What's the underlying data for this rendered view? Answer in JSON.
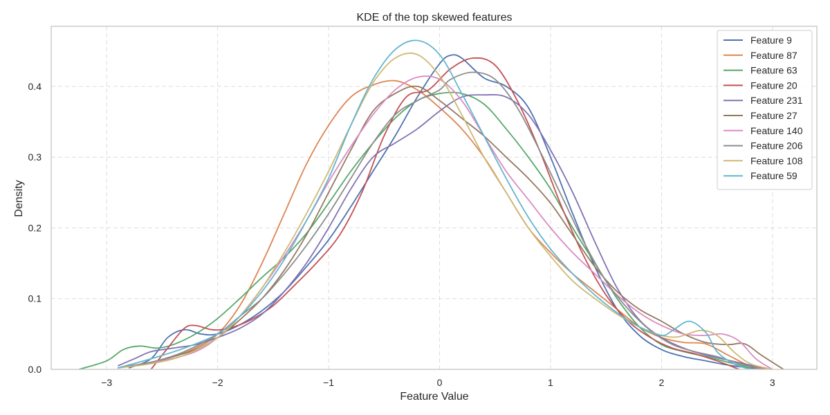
{
  "chart_data": {
    "type": "line",
    "title": "KDE of the top skewed features",
    "xlabel": "Feature Value",
    "ylabel": "Density",
    "xlim": [
      -3.5,
      3.4
    ],
    "ylim": [
      0,
      0.485
    ],
    "xticks": [
      -3,
      -2,
      -1,
      0,
      1,
      2,
      3
    ],
    "xtick_labels": [
      "−3",
      "−2",
      "−1",
      "0",
      "1",
      "2",
      "3"
    ],
    "yticks": [
      0.0,
      0.1,
      0.2,
      0.3,
      0.4
    ],
    "ytick_labels": [
      "0.0",
      "0.1",
      "0.2",
      "0.3",
      "0.4"
    ],
    "grid": true,
    "legend_position": "top-right",
    "series": [
      {
        "name": "Feature 9",
        "color": "#4c72b0",
        "x": [
          -2.8,
          -2.6,
          -2.45,
          -2.3,
          -2.15,
          -2.0,
          -1.8,
          -1.6,
          -1.4,
          -1.2,
          -1.0,
          -0.8,
          -0.6,
          -0.4,
          -0.2,
          0.0,
          0.1,
          0.2,
          0.4,
          0.6,
          0.8,
          1.0,
          1.2,
          1.4,
          1.6,
          1.8,
          2.0,
          2.2,
          2.4,
          2.6,
          2.8,
          3.0
        ],
        "y": [
          0.002,
          0.015,
          0.045,
          0.056,
          0.05,
          0.05,
          0.063,
          0.083,
          0.11,
          0.145,
          0.183,
          0.23,
          0.28,
          0.33,
          0.385,
          0.432,
          0.444,
          0.44,
          0.412,
          0.4,
          0.37,
          0.3,
          0.22,
          0.145,
          0.085,
          0.048,
          0.028,
          0.018,
          0.012,
          0.006,
          0.002,
          0.0
        ]
      },
      {
        "name": "Feature 87",
        "color": "#dd8452",
        "x": [
          -2.9,
          -2.6,
          -2.4,
          -2.2,
          -2.0,
          -1.8,
          -1.6,
          -1.4,
          -1.2,
          -1.0,
          -0.8,
          -0.6,
          -0.4,
          -0.2,
          0.0,
          0.2,
          0.4,
          0.6,
          0.8,
          1.0,
          1.2,
          1.4,
          1.6,
          1.8,
          2.0,
          2.2,
          2.4,
          2.6,
          2.8,
          3.0
        ],
        "y": [
          0.002,
          0.01,
          0.018,
          0.03,
          0.05,
          0.09,
          0.15,
          0.22,
          0.29,
          0.345,
          0.385,
          0.402,
          0.408,
          0.395,
          0.37,
          0.34,
          0.3,
          0.25,
          0.2,
          0.165,
          0.135,
          0.11,
          0.085,
          0.06,
          0.045,
          0.038,
          0.036,
          0.02,
          0.005,
          0.0
        ]
      },
      {
        "name": "Feature 63",
        "color": "#55a868",
        "x": [
          -3.25,
          -3.0,
          -2.85,
          -2.7,
          -2.55,
          -2.4,
          -2.2,
          -2.0,
          -1.8,
          -1.6,
          -1.4,
          -1.2,
          -1.0,
          -0.8,
          -0.6,
          -0.4,
          -0.2,
          0.0,
          0.2,
          0.4,
          0.6,
          0.8,
          1.0,
          1.2,
          1.4,
          1.6,
          1.8,
          2.0,
          2.2,
          2.4,
          2.6,
          2.8
        ],
        "y": [
          0.0,
          0.012,
          0.028,
          0.033,
          0.03,
          0.035,
          0.05,
          0.072,
          0.1,
          0.13,
          0.158,
          0.192,
          0.235,
          0.28,
          0.32,
          0.355,
          0.38,
          0.39,
          0.39,
          0.375,
          0.34,
          0.3,
          0.255,
          0.2,
          0.15,
          0.1,
          0.06,
          0.035,
          0.025,
          0.018,
          0.01,
          0.002
        ]
      },
      {
        "name": "Feature 20",
        "color": "#c44e52",
        "x": [
          -2.6,
          -2.45,
          -2.3,
          -2.2,
          -2.05,
          -1.9,
          -1.7,
          -1.5,
          -1.3,
          -1.1,
          -0.9,
          -0.7,
          -0.5,
          -0.3,
          -0.1,
          0.1,
          0.3,
          0.5,
          0.7,
          0.9,
          1.1,
          1.3,
          1.5,
          1.7,
          1.9,
          2.1,
          2.3,
          2.5,
          2.7
        ],
        "y": [
          0.0,
          0.03,
          0.058,
          0.062,
          0.056,
          0.058,
          0.07,
          0.09,
          0.12,
          0.152,
          0.19,
          0.25,
          0.33,
          0.385,
          0.395,
          0.425,
          0.44,
          0.43,
          0.38,
          0.31,
          0.23,
          0.16,
          0.105,
          0.068,
          0.045,
          0.03,
          0.022,
          0.012,
          0.0
        ]
      },
      {
        "name": "Feature 231",
        "color": "#8172b3",
        "x": [
          -2.9,
          -2.75,
          -2.6,
          -2.4,
          -2.2,
          -2.0,
          -1.8,
          -1.6,
          -1.4,
          -1.2,
          -1.0,
          -0.8,
          -0.6,
          -0.4,
          -0.2,
          0.0,
          0.2,
          0.4,
          0.6,
          0.8,
          1.0,
          1.2,
          1.4,
          1.6,
          1.8,
          2.0,
          2.2,
          2.4,
          2.6,
          2.8,
          3.0
        ],
        "y": [
          0.005,
          0.015,
          0.025,
          0.03,
          0.035,
          0.045,
          0.058,
          0.078,
          0.11,
          0.15,
          0.2,
          0.255,
          0.3,
          0.32,
          0.34,
          0.365,
          0.385,
          0.388,
          0.385,
          0.36,
          0.31,
          0.25,
          0.18,
          0.115,
          0.07,
          0.045,
          0.03,
          0.02,
          0.013,
          0.006,
          0.0
        ]
      },
      {
        "name": "Feature 27",
        "color": "#937860",
        "x": [
          -2.9,
          -2.6,
          -2.4,
          -2.2,
          -2.0,
          -1.8,
          -1.6,
          -1.4,
          -1.2,
          -1.0,
          -0.8,
          -0.6,
          -0.4,
          -0.2,
          0.0,
          0.2,
          0.4,
          0.6,
          0.8,
          1.0,
          1.2,
          1.4,
          1.6,
          1.8,
          2.0,
          2.2,
          2.4,
          2.6,
          2.75,
          2.9,
          3.1
        ],
        "y": [
          0.002,
          0.01,
          0.018,
          0.028,
          0.045,
          0.07,
          0.1,
          0.14,
          0.19,
          0.25,
          0.31,
          0.365,
          0.39,
          0.4,
          0.38,
          0.355,
          0.33,
          0.3,
          0.27,
          0.235,
          0.19,
          0.145,
          0.11,
          0.085,
          0.068,
          0.05,
          0.038,
          0.035,
          0.036,
          0.02,
          0.0
        ]
      },
      {
        "name": "Feature 140",
        "color": "#da8bc3",
        "x": [
          -2.8,
          -2.5,
          -2.2,
          -2.0,
          -1.8,
          -1.6,
          -1.4,
          -1.2,
          -1.0,
          -0.8,
          -0.6,
          -0.4,
          -0.2,
          0.0,
          0.2,
          0.4,
          0.6,
          0.8,
          1.0,
          1.2,
          1.4,
          1.6,
          1.8,
          2.0,
          2.2,
          2.4,
          2.55,
          2.7,
          2.85,
          3.0
        ],
        "y": [
          0.005,
          0.012,
          0.025,
          0.045,
          0.075,
          0.115,
          0.16,
          0.21,
          0.265,
          0.315,
          0.36,
          0.395,
          0.413,
          0.41,
          0.38,
          0.33,
          0.28,
          0.24,
          0.2,
          0.165,
          0.135,
          0.105,
          0.08,
          0.062,
          0.05,
          0.048,
          0.05,
          0.04,
          0.015,
          0.0
        ]
      },
      {
        "name": "Feature 206",
        "color": "#8c8c8c",
        "x": [
          -2.9,
          -2.6,
          -2.3,
          -2.0,
          -1.8,
          -1.6,
          -1.4,
          -1.2,
          -1.0,
          -0.8,
          -0.6,
          -0.4,
          -0.2,
          0.0,
          0.1,
          0.3,
          0.5,
          0.7,
          0.9,
          1.1,
          1.3,
          1.5,
          1.7,
          1.9,
          2.1,
          2.3,
          2.5,
          2.7,
          2.9
        ],
        "y": [
          0.002,
          0.01,
          0.025,
          0.05,
          0.075,
          0.1,
          0.135,
          0.175,
          0.22,
          0.27,
          0.32,
          0.36,
          0.38,
          0.395,
          0.41,
          0.42,
          0.41,
          0.37,
          0.31,
          0.245,
          0.18,
          0.125,
          0.085,
          0.055,
          0.035,
          0.025,
          0.018,
          0.008,
          0.0
        ]
      },
      {
        "name": "Feature 108",
        "color": "#ccb974",
        "x": [
          -2.9,
          -2.6,
          -2.3,
          -2.0,
          -1.8,
          -1.6,
          -1.4,
          -1.2,
          -1.0,
          -0.8,
          -0.6,
          -0.4,
          -0.2,
          0.0,
          0.2,
          0.4,
          0.6,
          0.8,
          1.0,
          1.2,
          1.4,
          1.6,
          1.8,
          2.0,
          2.15,
          2.35,
          2.5,
          2.65,
          2.8,
          3.0
        ],
        "y": [
          0.002,
          0.008,
          0.02,
          0.045,
          0.075,
          0.115,
          0.165,
          0.22,
          0.28,
          0.345,
          0.405,
          0.44,
          0.445,
          0.415,
          0.36,
          0.3,
          0.25,
          0.2,
          0.16,
          0.125,
          0.1,
          0.078,
          0.06,
          0.048,
          0.046,
          0.055,
          0.048,
          0.025,
          0.008,
          0.0
        ]
      },
      {
        "name": "Feature 59",
        "color": "#64b5cd",
        "x": [
          -2.9,
          -2.6,
          -2.3,
          -2.0,
          -1.8,
          -1.6,
          -1.4,
          -1.2,
          -1.0,
          -0.8,
          -0.6,
          -0.4,
          -0.2,
          0.0,
          0.2,
          0.4,
          0.6,
          0.8,
          1.0,
          1.2,
          1.4,
          1.6,
          1.8,
          2.0,
          2.1,
          2.25,
          2.4,
          2.5,
          2.65,
          2.8
        ],
        "y": [
          0.002,
          0.015,
          0.03,
          0.05,
          0.075,
          0.11,
          0.155,
          0.21,
          0.27,
          0.345,
          0.41,
          0.452,
          0.465,
          0.445,
          0.39,
          0.33,
          0.27,
          0.215,
          0.17,
          0.135,
          0.105,
          0.08,
          0.06,
          0.048,
          0.055,
          0.068,
          0.052,
          0.025,
          0.008,
          0.0
        ]
      }
    ]
  }
}
